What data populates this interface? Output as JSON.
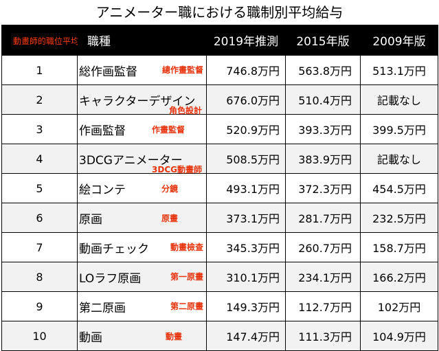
{
  "title": "アニメーター職における職制別平均給与",
  "header": {
    "zh_label": "動畫師的職位平均薪資",
    "job": "職種",
    "y2019": "2019年推測",
    "y2015": "2015年版",
    "y2009": "2009年版"
  },
  "rows": [
    {
      "rank": "1",
      "job_ja": "総作画監督",
      "job_zh": "總作畫監督",
      "y2019": "746.8万円",
      "y2015": "563.8万円",
      "y2009": "513.1万円"
    },
    {
      "rank": "2",
      "job_ja": "キャラクターデザイン",
      "job_zh": "角色設計",
      "y2019": "676.0万円",
      "y2015": "510.4万円",
      "y2009": "記載なし"
    },
    {
      "rank": "3",
      "job_ja": "作画監督",
      "job_zh": "作畫監督",
      "y2019": "520.9万円",
      "y2015": "393.3万円",
      "y2009": "399.5万円"
    },
    {
      "rank": "4",
      "job_ja": "3DCGアニメーター",
      "job_zh": "3DCG動畫師",
      "y2019": "508.5万円",
      "y2015": "383.9万円",
      "y2009": "記載なし"
    },
    {
      "rank": "5",
      "job_ja": "絵コンテ",
      "job_zh": "分鏡",
      "y2019": "493.1万円",
      "y2015": "372.3万円",
      "y2009": "454.5万円"
    },
    {
      "rank": "6",
      "job_ja": "原画",
      "job_zh": "原畫",
      "y2019": "373.1万円",
      "y2015": "281.7万円",
      "y2009": "232.5万円"
    },
    {
      "rank": "7",
      "job_ja": "動画チェック",
      "job_zh": "動畫檢查",
      "y2019": "345.3万円",
      "y2015": "260.7万円",
      "y2009": "158.7万円"
    },
    {
      "rank": "8",
      "job_ja": "LOラフ原画",
      "job_zh": "第一原畫",
      "y2019": "310.1万円",
      "y2015": "234.1万円",
      "y2009": "166.2万円"
    },
    {
      "rank": "9",
      "job_ja": "第二原画",
      "job_zh": "第二原畫",
      "y2019": "149.3万円",
      "y2015": "112.7万円",
      "y2009": "102万円"
    },
    {
      "rank": "10",
      "job_ja": "動画",
      "job_zh": "動畫",
      "y2019": "147.4万円",
      "y2015": "111.3万円",
      "y2009": "104.9万円"
    }
  ],
  "colors": {
    "header_bg": "#000000",
    "header_text": "#ffffff",
    "annotation_red": "#e8330b",
    "row_alt": "#f2f2f2"
  }
}
